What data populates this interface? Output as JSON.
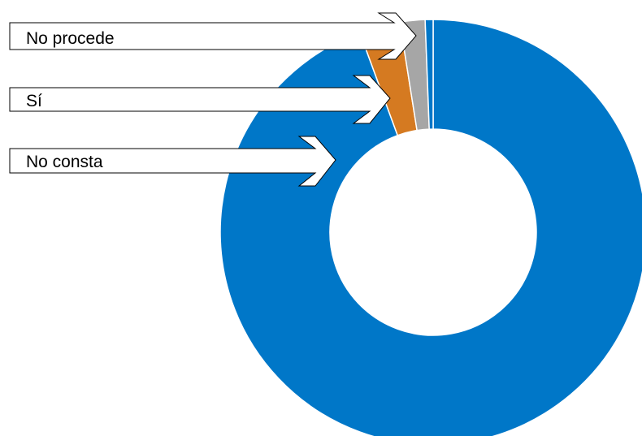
{
  "chart_data": {
    "type": "pie",
    "variant": "donut",
    "title": "",
    "legend": "none",
    "slices": [
      {
        "label": "",
        "value": 94.4,
        "color": "#0077c8"
      },
      {
        "label": "No procede",
        "value": 3.1,
        "color": "#d57a21"
      },
      {
        "label": "Sí",
        "value": 1.9,
        "color": "#a6a6a6"
      },
      {
        "label": "No consta",
        "value": 0.6,
        "color": "#0077c8"
      }
    ],
    "callouts": [
      {
        "label": "No procede"
      },
      {
        "label": "Sí"
      },
      {
        "label": "No consta"
      }
    ]
  }
}
